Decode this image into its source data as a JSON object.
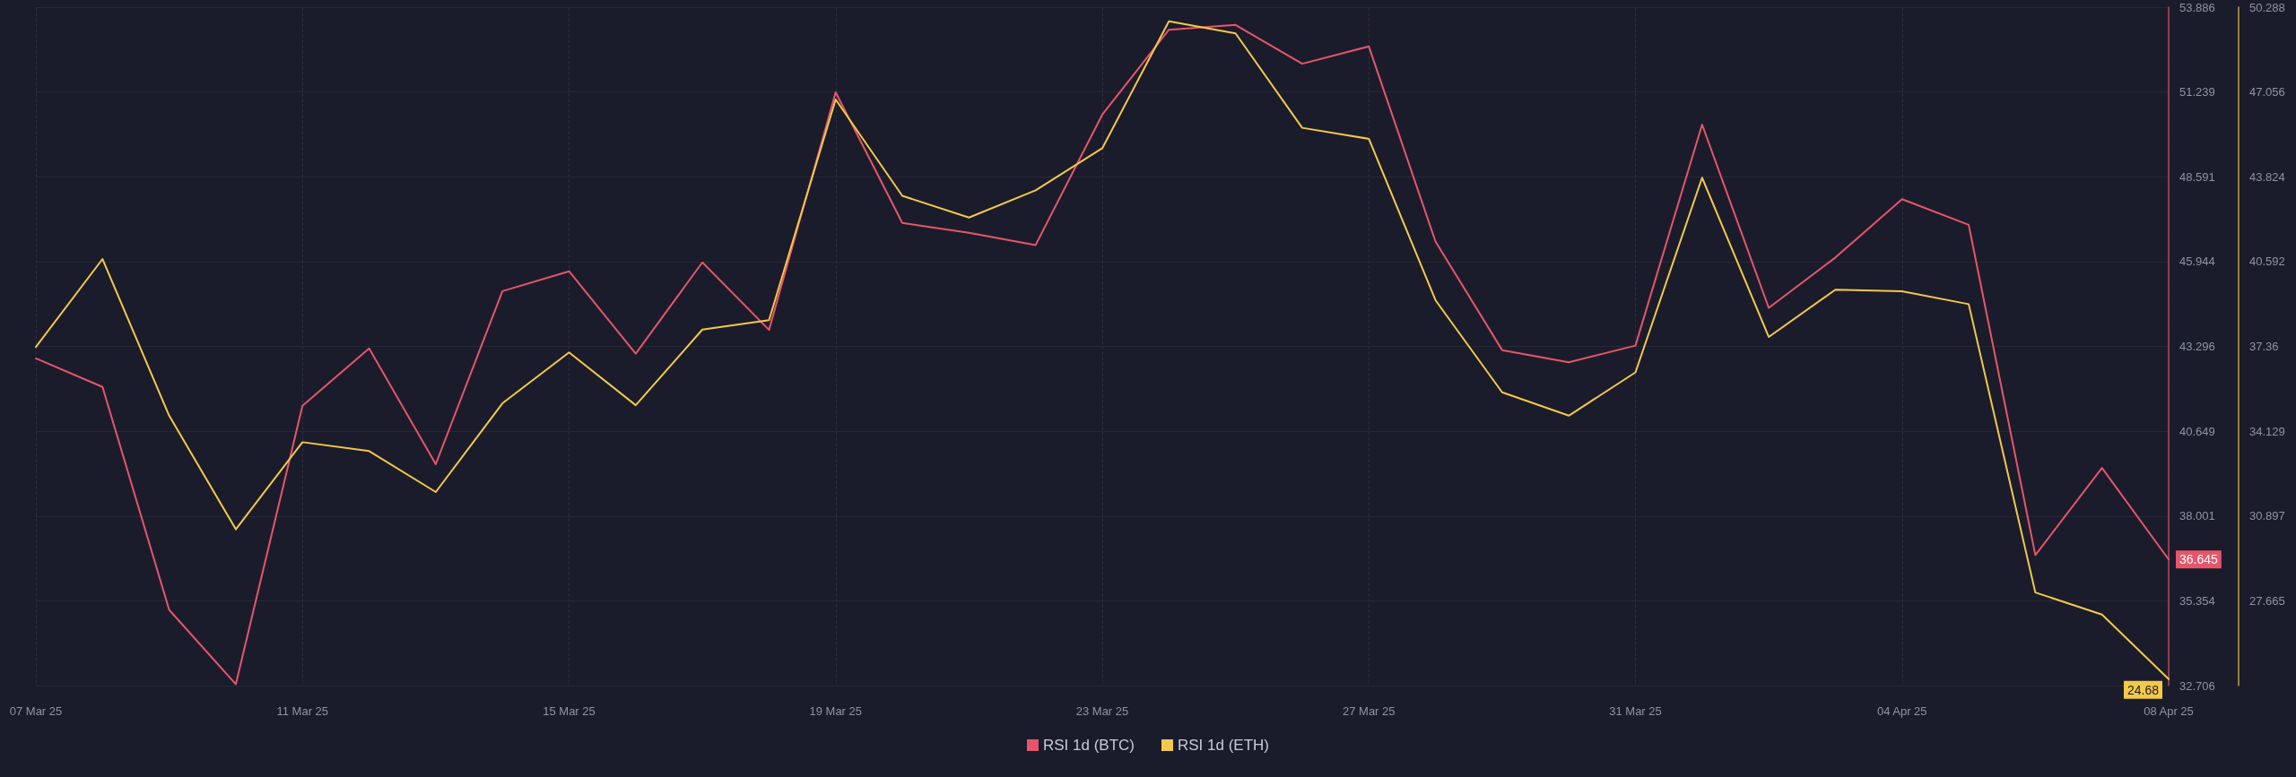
{
  "chart_data": {
    "type": "line",
    "categories": [
      "07 Mar 25",
      null,
      null,
      null,
      "11 Mar 25",
      null,
      null,
      null,
      "15 Mar 25",
      null,
      null,
      null,
      "19 Mar 25",
      null,
      null,
      null,
      "23 Mar 25",
      null,
      null,
      null,
      "27 Mar 25",
      null,
      null,
      null,
      "31 Mar 25",
      null,
      null,
      null,
      "04 Apr 25",
      null,
      null,
      null,
      "08 Apr 25"
    ],
    "series": [
      {
        "name": "RSI 1d (BTC)",
        "color": "#e5566a",
        "values": [
          42.92,
          42.03,
          35.07,
          32.75,
          41.44,
          43.23,
          39.62,
          45.02,
          45.64,
          43.07,
          45.92,
          43.81,
          51.23,
          47.15,
          46.84,
          46.46,
          50.53,
          53.18,
          53.33,
          52.12,
          52.66,
          46.57,
          43.18,
          42.8,
          43.32,
          50.22,
          44.5,
          46.07,
          47.89,
          47.09,
          36.78,
          39.5,
          36.645
        ],
        "value_labels": [
          null,
          null,
          null,
          null,
          null,
          null,
          null,
          null,
          null,
          null,
          null,
          null,
          null,
          null,
          null,
          null,
          null,
          null,
          null,
          null,
          null,
          null,
          null,
          null,
          null,
          null,
          null,
          null,
          null,
          null,
          null,
          null,
          "36.645"
        ]
      },
      {
        "name": "RSI 1d (ETH)",
        "color": "#f3c94a",
        "axis": "y2",
        "values": [
          37.34,
          40.69,
          34.72,
          30.39,
          33.71,
          33.37,
          31.81,
          35.19,
          37.13,
          35.12,
          38.0,
          38.36,
          46.77,
          43.1,
          42.27,
          43.31,
          44.91,
          49.75,
          49.29,
          45.69,
          45.27,
          39.12,
          35.61,
          34.72,
          36.37,
          43.79,
          37.72,
          39.52,
          39.46,
          38.97,
          27.98,
          27.14,
          24.68
        ],
        "value_labels": [
          null,
          null,
          null,
          null,
          null,
          null,
          null,
          null,
          null,
          null,
          null,
          null,
          null,
          null,
          null,
          null,
          null,
          null,
          null,
          null,
          null,
          null,
          null,
          null,
          null,
          null,
          null,
          null,
          null,
          null,
          null,
          null,
          "24.68"
        ]
      }
    ],
    "ylim": [
      32.706,
      53.886
    ],
    "yticks": [
      32.706,
      35.354,
      38.001,
      40.649,
      43.296,
      45.944,
      48.591,
      51.239,
      53.886
    ],
    "y2lim": [
      24.433,
      50.288
    ],
    "y2ticks": [
      27.665,
      30.897,
      34.129,
      37.36,
      40.592,
      43.824,
      47.056,
      50.288
    ],
    "grid": true,
    "legend": "bottom",
    "marker": "none",
    "line_style": "solid"
  }
}
